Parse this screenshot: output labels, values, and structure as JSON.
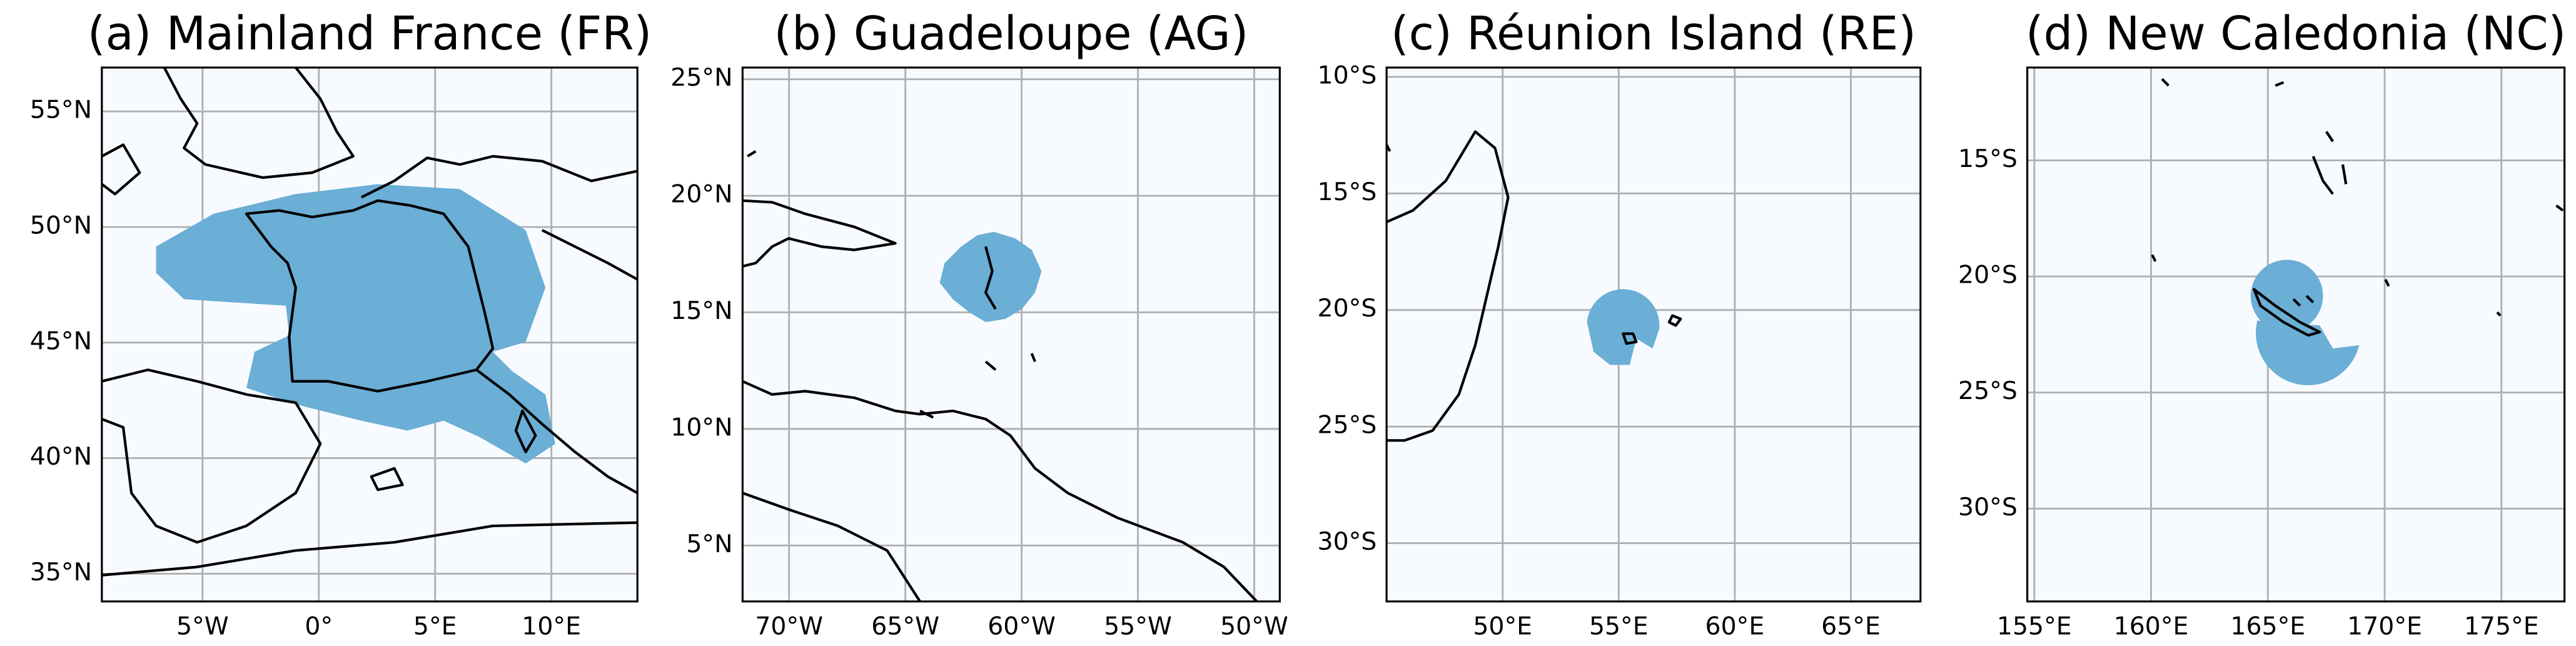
{
  "panels": [
    {
      "title": "(a) Mainland France (FR)",
      "xlim": [
        -9.33,
        13.7
      ],
      "ylim": [
        33.8,
        56.9
      ],
      "xticks": [
        {
          "value": -5,
          "label": "5°W"
        },
        {
          "value": 0,
          "label": "0°"
        },
        {
          "value": 5,
          "label": "5°E"
        },
        {
          "value": 10,
          "label": "10°E"
        }
      ],
      "yticks": [
        {
          "value": 35,
          "label": "35°N"
        },
        {
          "value": 40,
          "label": "40°N"
        },
        {
          "value": 45,
          "label": "45°N"
        },
        {
          "value": 50,
          "label": "50°N"
        },
        {
          "value": 55,
          "label": "55°N"
        }
      ]
    },
    {
      "title": "(b) Guadeloupe (AG)",
      "xlim": [
        -72.0,
        -48.9
      ],
      "ylim": [
        2.6,
        25.5
      ],
      "xticks": [
        {
          "value": -70,
          "label": "70°W"
        },
        {
          "value": -65,
          "label": "65°W"
        },
        {
          "value": -60,
          "label": "60°W"
        },
        {
          "value": -55,
          "label": "55°W"
        },
        {
          "value": -50,
          "label": "50°W"
        }
      ],
      "yticks": [
        {
          "value": 5,
          "label": "5°N"
        },
        {
          "value": 10,
          "label": "10°N"
        },
        {
          "value": 15,
          "label": "15°N"
        },
        {
          "value": 20,
          "label": "20°N"
        },
        {
          "value": 25,
          "label": "25°N"
        }
      ]
    },
    {
      "title": "(c) Réunion Island (RE)",
      "xlim": [
        45.0,
        68.0
      ],
      "ylim": [
        -32.5,
        -9.6
      ],
      "xticks": [
        {
          "value": 50,
          "label": "50°E"
        },
        {
          "value": 55,
          "label": "55°E"
        },
        {
          "value": 60,
          "label": "60°E"
        },
        {
          "value": 65,
          "label": "65°E"
        }
      ],
      "yticks": [
        {
          "value": -30,
          "label": "30°S"
        },
        {
          "value": -25,
          "label": "25°S"
        },
        {
          "value": -20,
          "label": "20°S"
        },
        {
          "value": -15,
          "label": "15°S"
        },
        {
          "value": -10,
          "label": "10°S"
        }
      ]
    },
    {
      "title": "(d) New Caledonia (NC)",
      "xlim": [
        154.7,
        177.7
      ],
      "ylim": [
        -34.0,
        -11.0
      ],
      "xticks": [
        {
          "value": 155,
          "label": "155°E"
        },
        {
          "value": 160,
          "label": "160°E"
        },
        {
          "value": 165,
          "label": "165°E"
        },
        {
          "value": 170,
          "label": "170°E"
        },
        {
          "value": 175,
          "label": "175°E"
        }
      ],
      "yticks": [
        {
          "value": -30,
          "label": "30°S"
        },
        {
          "value": -25,
          "label": "25°S"
        },
        {
          "value": -20,
          "label": "20°S"
        },
        {
          "value": -15,
          "label": "15°S"
        }
      ]
    }
  ]
}
